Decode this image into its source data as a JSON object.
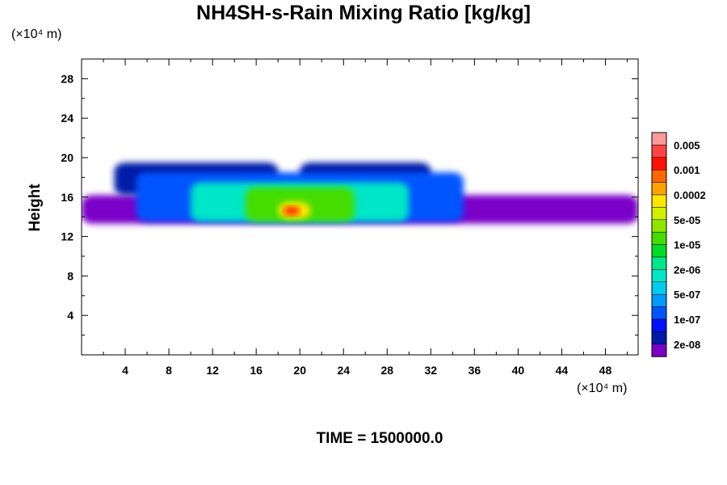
{
  "chart_data": {
    "type": "heatmap",
    "title": "NH4SH-s-Rain Mixing Ratio [kg/kg]",
    "ylabel": "Height",
    "x_unit": "(×10⁴ m)",
    "y_unit": "(×10⁴ m)",
    "xlim": [
      0,
      51
    ],
    "ylim": [
      0,
      30
    ],
    "x_ticks": [
      "4",
      "8",
      "12",
      "16",
      "20",
      "24",
      "28",
      "32",
      "36",
      "40",
      "44",
      "48"
    ],
    "y_ticks": [
      "4",
      "8",
      "12",
      "16",
      "20",
      "24",
      "28"
    ],
    "colorbar": {
      "labels": [
        "0.005",
        "0.001",
        "0.0002",
        "5e-05",
        "1e-05",
        "2e-06",
        "5e-07",
        "1e-07",
        "2e-08"
      ],
      "colors": [
        "#ff9999",
        "#ff4444",
        "#ff1100",
        "#ff6600",
        "#ffa200",
        "#ffe600",
        "#d2f000",
        "#8ee600",
        "#44dd00",
        "#00dd22",
        "#00e68a",
        "#00e6c8",
        "#00ccf0",
        "#0099ff",
        "#0055ff",
        "#0011ff",
        "#001aa8",
        "#7a00c8"
      ]
    },
    "field_regions": [
      {
        "level": 0,
        "x": [
          0,
          51
        ],
        "y": [
          13.3,
          16.2
        ]
      },
      {
        "level": 1,
        "x": [
          3,
          18
        ],
        "y": [
          16.2,
          19.5
        ]
      },
      {
        "level": 1,
        "x": [
          20,
          32
        ],
        "y": [
          16.5,
          19.5
        ]
      },
      {
        "level": 3,
        "x": [
          5,
          35
        ],
        "y": [
          13.5,
          18.5
        ]
      },
      {
        "level": 6,
        "x": [
          10,
          30
        ],
        "y": [
          13.5,
          17.5
        ]
      },
      {
        "level": 9,
        "x": [
          15,
          25
        ],
        "y": [
          13.5,
          17
        ]
      },
      {
        "level": 12,
        "x": [
          18,
          21
        ],
        "y": [
          13.8,
          15.5
        ]
      },
      {
        "level": 15,
        "x": [
          18.5,
          20
        ],
        "y": [
          14.2,
          15.0
        ]
      }
    ],
    "annotation": "TIME = 1500000.0"
  }
}
